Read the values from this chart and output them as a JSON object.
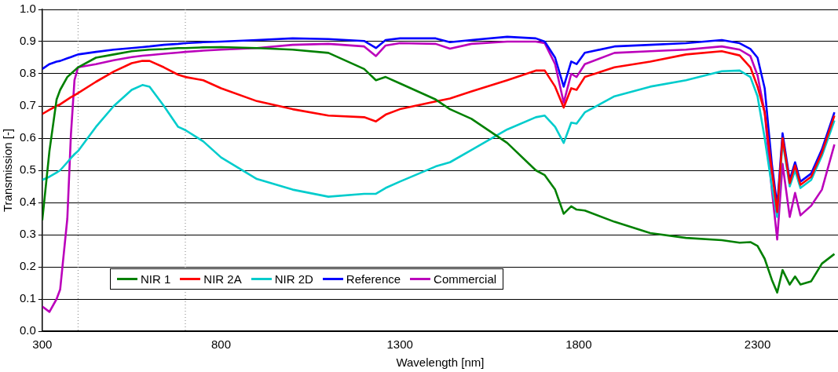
{
  "chart_data": {
    "type": "line",
    "xlabel": "Wavelength [nm]",
    "ylabel": "Transmission [-]",
    "x": [
      300,
      320,
      340,
      350,
      370,
      380,
      390,
      400,
      450,
      500,
      550,
      580,
      600,
      640,
      680,
      700,
      750,
      800,
      900,
      1000,
      1100,
      1200,
      1233,
      1260,
      1300,
      1400,
      1440,
      1500,
      1600,
      1680,
      1705,
      1734,
      1758,
      1779,
      1794,
      1817,
      1900,
      2000,
      2100,
      2200,
      2250,
      2280,
      2300,
      2320,
      2340,
      2355,
      2370,
      2390,
      2405,
      2420,
      2450,
      2480,
      2515
    ],
    "series": [
      {
        "name": "NIR 1",
        "color": "#008000",
        "values": [
          0.345,
          0.56,
          0.72,
          0.75,
          0.79,
          0.8,
          0.81,
          0.82,
          0.85,
          0.86,
          0.87,
          0.873,
          0.875,
          0.877,
          0.88,
          0.88,
          0.882,
          0.883,
          0.88,
          0.875,
          0.865,
          0.815,
          0.78,
          0.79,
          0.77,
          0.72,
          0.69,
          0.66,
          0.585,
          0.5,
          0.485,
          0.44,
          0.365,
          0.388,
          0.378,
          0.375,
          0.34,
          0.305,
          0.29,
          0.283,
          0.275,
          0.277,
          0.265,
          0.225,
          0.16,
          0.12,
          0.19,
          0.145,
          0.17,
          0.145,
          0.155,
          0.21,
          0.24
        ]
      },
      {
        "name": "NIR 2A",
        "color": "#ff0000",
        "values": [
          0.675,
          0.688,
          0.7,
          0.705,
          0.72,
          0.727,
          0.733,
          0.74,
          0.775,
          0.807,
          0.833,
          0.84,
          0.84,
          0.82,
          0.797,
          0.79,
          0.78,
          0.755,
          0.715,
          0.69,
          0.67,
          0.665,
          0.652,
          0.673,
          0.69,
          0.714,
          0.723,
          0.745,
          0.78,
          0.81,
          0.81,
          0.76,
          0.695,
          0.755,
          0.75,
          0.79,
          0.82,
          0.838,
          0.86,
          0.87,
          0.857,
          0.82,
          0.76,
          0.68,
          0.5,
          0.37,
          0.6,
          0.46,
          0.515,
          0.455,
          0.48,
          0.555,
          0.67
        ]
      },
      {
        "name": "NIR 2D",
        "color": "#00cccc",
        "values": [
          0.47,
          0.48,
          0.493,
          0.5,
          0.525,
          0.538,
          0.55,
          0.56,
          0.635,
          0.7,
          0.75,
          0.765,
          0.76,
          0.7,
          0.635,
          0.625,
          0.59,
          0.54,
          0.473,
          0.44,
          0.418,
          0.427,
          0.427,
          0.445,
          0.465,
          0.512,
          0.525,
          0.563,
          0.627,
          0.665,
          0.67,
          0.635,
          0.585,
          0.648,
          0.645,
          0.68,
          0.73,
          0.76,
          0.78,
          0.808,
          0.81,
          0.79,
          0.73,
          0.6,
          0.45,
          0.355,
          0.59,
          0.45,
          0.5,
          0.445,
          0.47,
          0.545,
          0.655
        ]
      },
      {
        "name": "Reference",
        "color": "#0000ff",
        "values": [
          0.815,
          0.83,
          0.838,
          0.84,
          0.848,
          0.852,
          0.856,
          0.86,
          0.868,
          0.875,
          0.88,
          0.883,
          0.885,
          0.89,
          0.893,
          0.895,
          0.898,
          0.9,
          0.905,
          0.91,
          0.908,
          0.902,
          0.88,
          0.905,
          0.91,
          0.91,
          0.898,
          0.905,
          0.915,
          0.91,
          0.9,
          0.85,
          0.76,
          0.838,
          0.83,
          0.865,
          0.885,
          0.89,
          0.895,
          0.905,
          0.895,
          0.877,
          0.85,
          0.755,
          0.52,
          0.39,
          0.615,
          0.47,
          0.525,
          0.465,
          0.49,
          0.565,
          0.68
        ]
      },
      {
        "name": "Commercial",
        "color": "#bb00bb",
        "values": [
          0.077,
          0.06,
          0.1,
          0.13,
          0.35,
          0.61,
          0.78,
          0.82,
          0.83,
          0.842,
          0.852,
          0.856,
          0.858,
          0.862,
          0.866,
          0.868,
          0.872,
          0.875,
          0.88,
          0.89,
          0.893,
          0.885,
          0.855,
          0.888,
          0.895,
          0.893,
          0.878,
          0.893,
          0.9,
          0.9,
          0.895,
          0.83,
          0.71,
          0.8,
          0.79,
          0.83,
          0.865,
          0.87,
          0.875,
          0.885,
          0.875,
          0.855,
          0.795,
          0.68,
          0.44,
          0.285,
          0.52,
          0.355,
          0.43,
          0.36,
          0.39,
          0.44,
          0.58
        ]
      }
    ],
    "xlim": [
      300,
      2525
    ],
    "xticks": [
      300,
      800,
      1300,
      1800,
      2300
    ],
    "ylim": [
      0,
      1
    ],
    "yticks": [
      {
        "value": 0,
        "label": "0.0"
      },
      {
        "value": 0.1,
        "label": "0.1"
      },
      {
        "value": 0.2,
        "label": "0.2"
      },
      {
        "value": 0.3,
        "label": "0.3"
      },
      {
        "value": 0.4,
        "label": "0.4"
      },
      {
        "value": 0.5,
        "label": "0.5"
      },
      {
        "value": 0.6,
        "label": "0.6"
      },
      {
        "value": 0.7,
        "label": "0.7"
      },
      {
        "value": 0.8,
        "label": "0.8"
      },
      {
        "value": 0.9,
        "label": "0.9"
      },
      {
        "value": 1,
        "label": "1.0"
      }
    ],
    "ref_lines": [
      {
        "axis": "x",
        "value": 400,
        "color": "#808080",
        "line_style": "dotted"
      },
      {
        "axis": "x",
        "value": 700,
        "color": "#808080",
        "line_style": "dotted"
      }
    ],
    "grid": "y",
    "legend": "bottom left",
    "marker": "none",
    "line_style": "solid"
  }
}
